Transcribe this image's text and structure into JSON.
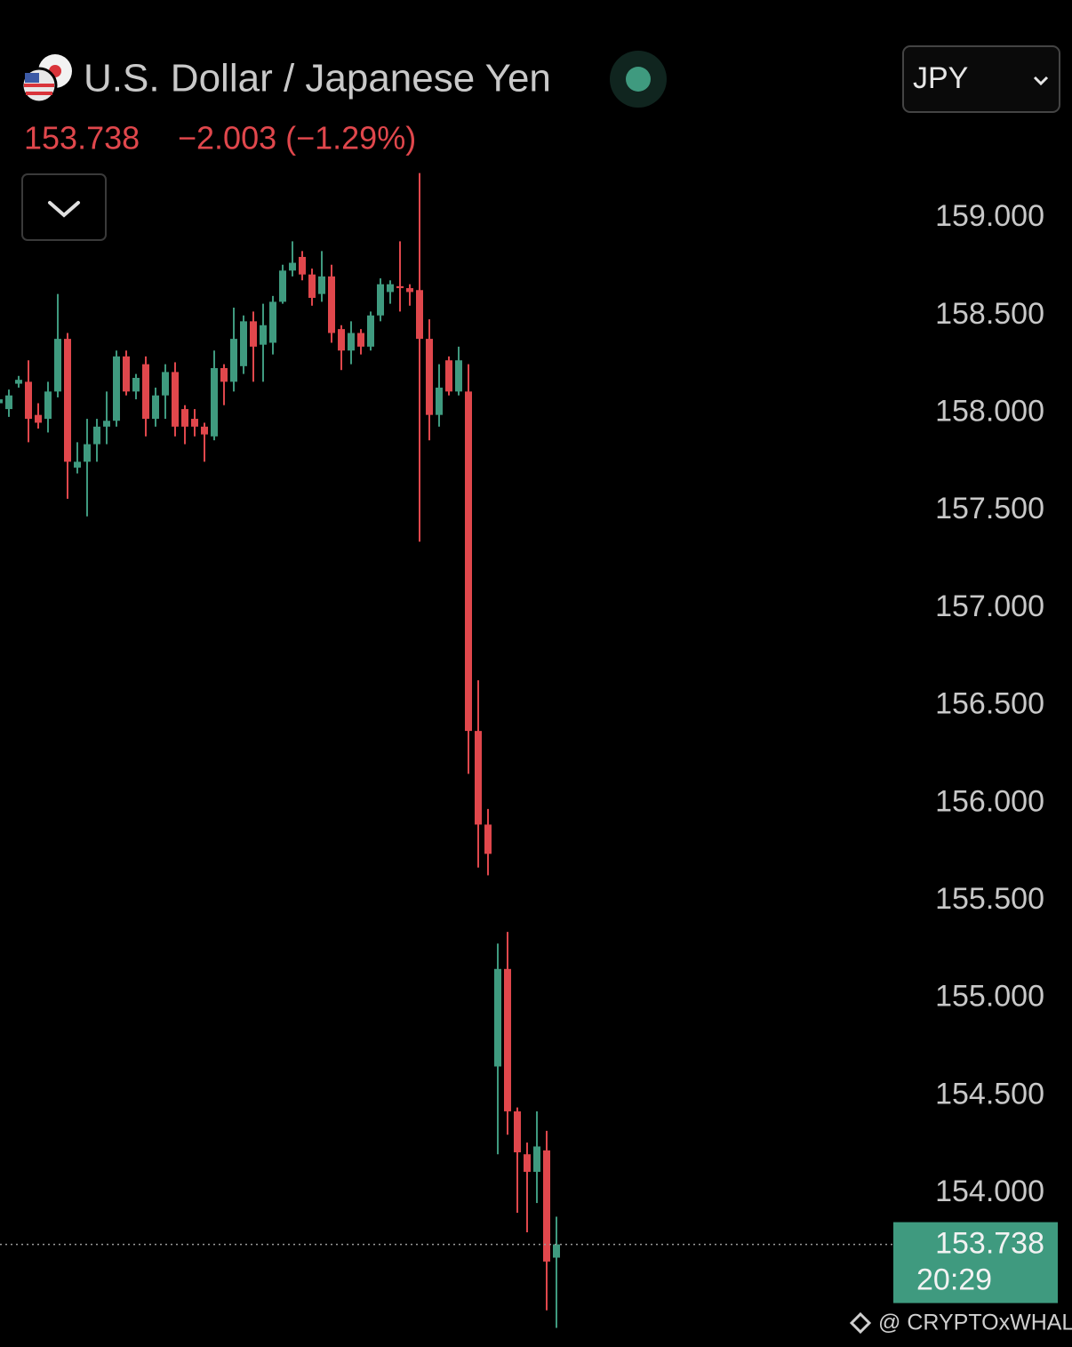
{
  "header": {
    "title": "U.S. Dollar / Japanese Yen",
    "price": "153.738",
    "change": "−2.003 (−1.29%)",
    "currency": "JPY",
    "watermark": "@ CRYPTOxWHALE"
  },
  "chart_data": {
    "type": "candlestick",
    "up_color": "#3f9a7f",
    "down_color": "#e0474c",
    "open": [
      158.05,
      158.02,
      158.15,
      158.16,
      157.99,
      157.97,
      158.11,
      158.38,
      157.72,
      157.75,
      157.84,
      157.93,
      157.96,
      158.29,
      158.11,
      158.25,
      157.97,
      158.09,
      158.21,
      158.02,
      157.97,
      157.93,
      157.88,
      158.23,
      158.16,
      158.24,
      158.47,
      158.35,
      158.36,
      158.57,
      158.73,
      158.8,
      158.71,
      158.61,
      158.7,
      158.43,
      158.32,
      158.41,
      158.34,
      158.5,
      158.62,
      158.65,
      158.64,
      158.63,
      158.38,
      157.99,
      158.27,
      158.11,
      158.11,
      156.37,
      155.89,
      154.65,
      155.15,
      154.42,
      154.2,
      154.11,
      154.22,
      153.67
    ],
    "high": [
      158.09,
      158.12,
      158.19,
      158.27,
      158.05,
      158.16,
      158.61,
      158.41,
      157.85,
      157.97,
      157.97,
      158.11,
      158.32,
      158.32,
      158.2,
      158.29,
      158.13,
      158.25,
      158.26,
      158.04,
      158.02,
      157.95,
      158.32,
      158.25,
      158.54,
      158.5,
      158.52,
      158.56,
      158.6,
      158.76,
      158.88,
      158.83,
      158.74,
      158.83,
      158.76,
      158.45,
      158.47,
      158.43,
      158.52,
      158.69,
      158.68,
      158.88,
      158.66,
      159.23,
      158.48,
      158.25,
      158.29,
      158.34,
      158.25,
      156.63,
      155.97,
      155.28,
      155.34,
      154.44,
      154.26,
      154.42,
      154.32,
      153.88
    ],
    "low": [
      158.02,
      157.98,
      158.13,
      157.85,
      157.92,
      157.9,
      158.08,
      157.56,
      157.69,
      157.47,
      157.75,
      157.84,
      157.93,
      158.09,
      158.07,
      157.88,
      157.93,
      157.97,
      157.88,
      157.84,
      157.88,
      157.75,
      157.86,
      158.04,
      158.11,
      158.2,
      158.16,
      158.16,
      158.3,
      158.56,
      158.7,
      158.68,
      158.55,
      158.57,
      158.36,
      158.22,
      158.25,
      158.3,
      158.32,
      158.47,
      158.56,
      158.52,
      158.55,
      157.34,
      157.86,
      157.93,
      158.09,
      158.09,
      156.15,
      155.67,
      155.63,
      154.2,
      154.3,
      153.9,
      153.8,
      153.95,
      153.4,
      153.31
    ],
    "close": [
      158.07,
      158.09,
      158.17,
      157.97,
      157.95,
      158.11,
      158.38,
      157.75,
      157.75,
      157.84,
      157.93,
      157.96,
      158.29,
      158.11,
      158.18,
      157.97,
      158.09,
      158.21,
      157.93,
      157.93,
      157.93,
      157.89,
      158.23,
      158.16,
      158.38,
      158.47,
      158.34,
      158.45,
      158.57,
      158.73,
      158.77,
      158.71,
      158.59,
      158.7,
      158.41,
      158.32,
      158.41,
      158.34,
      158.5,
      158.66,
      158.66,
      158.64,
      158.62,
      158.38,
      157.99,
      158.13,
      158.11,
      158.27,
      156.37,
      155.89,
      155.74,
      155.15,
      154.42,
      154.21,
      154.11,
      154.24,
      153.65,
      153.738
    ],
    "last_price": 153.738,
    "countdown": "20:29",
    "ylim": [
      153.212,
      160.117
    ],
    "yticks": [
      {
        "value": 154,
        "label": "154.000"
      },
      {
        "value": 154.5,
        "label": "154.500"
      },
      {
        "value": 155,
        "label": "155.000"
      },
      {
        "value": 155.5,
        "label": "155.500"
      },
      {
        "value": 156,
        "label": "156.000"
      },
      {
        "value": 156.5,
        "label": "156.500"
      },
      {
        "value": 157,
        "label": "157.000"
      },
      {
        "value": 157.5,
        "label": "157.500"
      },
      {
        "value": 158,
        "label": "158.000"
      },
      {
        "value": 158.5,
        "label": "158.500"
      },
      {
        "value": 159,
        "label": "159.000"
      }
    ]
  }
}
